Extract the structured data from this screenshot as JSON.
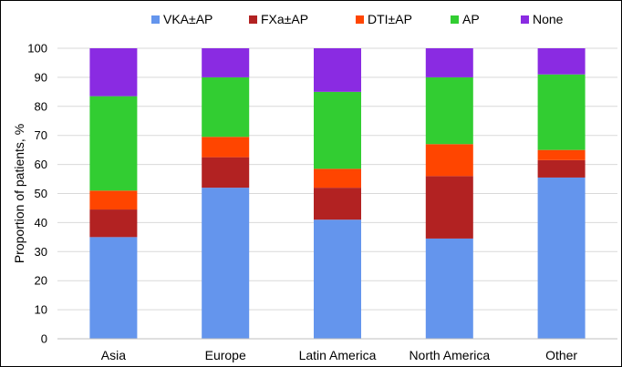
{
  "chart_data": {
    "type": "bar",
    "stacked": true,
    "ylabel": "Proportion of patients, %",
    "xlabel": "",
    "ylim": [
      0,
      100
    ],
    "yticks": [
      0,
      10,
      20,
      30,
      40,
      50,
      60,
      70,
      80,
      90,
      100
    ],
    "grid": true,
    "legend_position": "top",
    "categories": [
      "Asia",
      "Europe",
      "Latin America",
      "North America",
      "Other"
    ],
    "series": [
      {
        "name": "VKA±AP",
        "color": "#6495ED",
        "values": [
          35,
          52,
          41,
          34.5,
          55.5
        ]
      },
      {
        "name": "FXa±AP",
        "color": "#B22222",
        "values": [
          9.5,
          10.5,
          11,
          21.5,
          6
        ]
      },
      {
        "name": "DTI±AP",
        "color": "#FF4500",
        "values": [
          6.5,
          7,
          6.5,
          11,
          3.5
        ]
      },
      {
        "name": "AP",
        "color": "#32CD32",
        "values": [
          32.5,
          20.5,
          26.5,
          23,
          26
        ]
      },
      {
        "name": "None",
        "color": "#8A2BE2",
        "values": [
          16.5,
          10,
          15,
          10,
          9
        ]
      }
    ]
  }
}
